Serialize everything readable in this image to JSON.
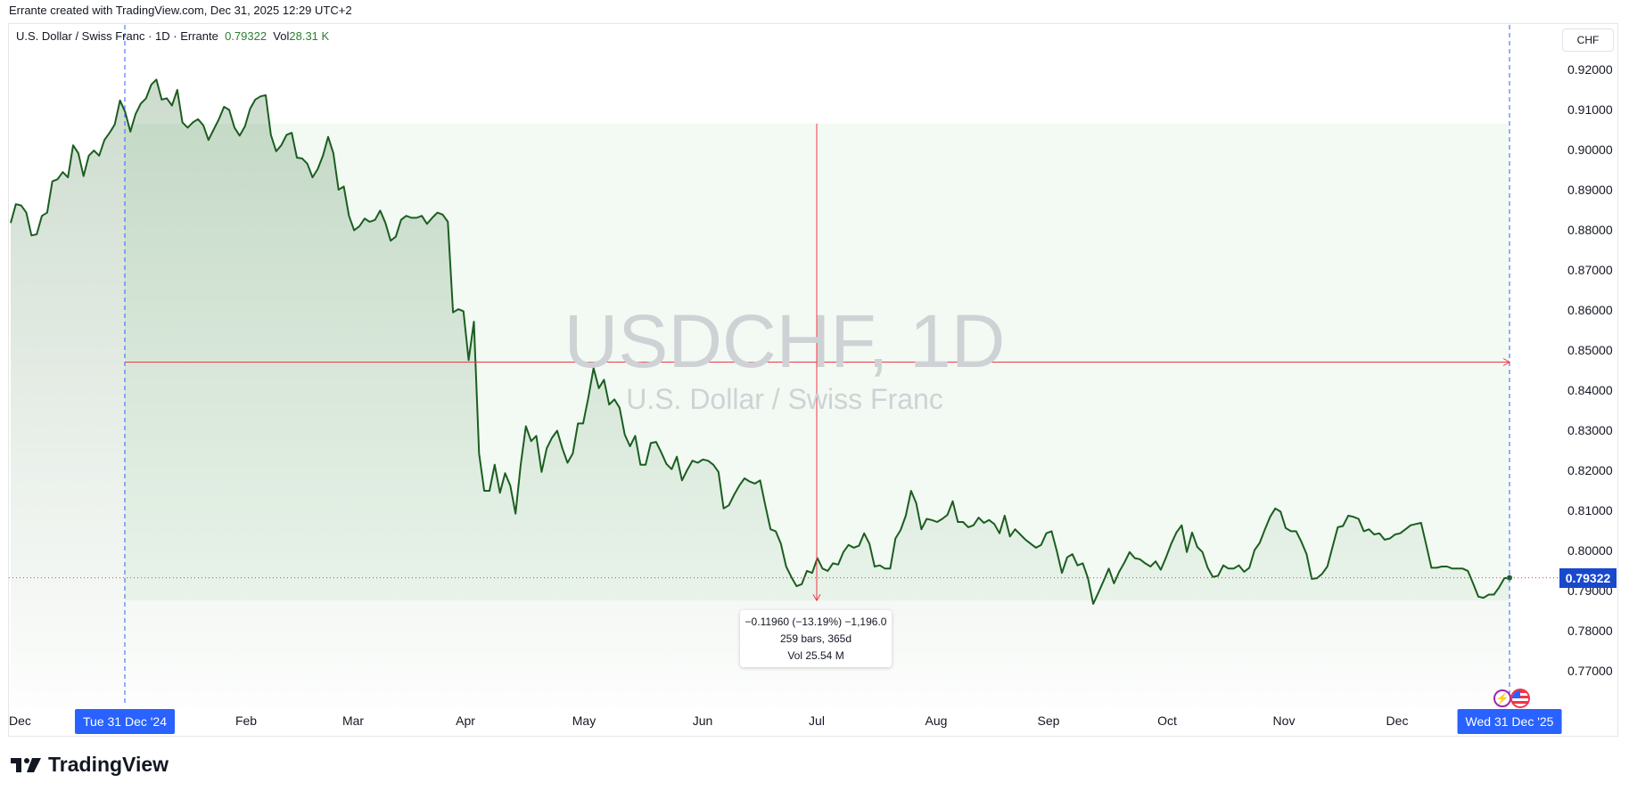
{
  "header": {
    "credit": "Errante created with TradingView.com, Dec 31, 2025 12:29 UTC+2",
    "symbol_desc": "U.S. Dollar / Swiss Franc · 1D · Errante",
    "last": "0.79322",
    "vol_label": "Vol",
    "vol_value": "28.31 K",
    "currency_button": "CHF"
  },
  "watermark": {
    "title": "USDCHF, 1D",
    "subtitle": "U.S. Dollar / Swiss Franc"
  },
  "measure_tooltip": {
    "line1": "−0.11960 (−13.19%) −1,196.0",
    "line2": "259 bars, 365d",
    "line3": "Vol 25.54 M"
  },
  "brand": {
    "name": "TradingView"
  },
  "colors": {
    "line": "#1b5e20",
    "accent": "#2962ff",
    "last_price_bg": "#1848cc",
    "measure": "#f23645"
  },
  "chart_data": {
    "type": "area",
    "symbol": "USDCHF",
    "interval": "1D",
    "ylim": [
      0.76,
      0.925
    ],
    "y_ticks": [
      "0.92000",
      "0.91000",
      "0.90000",
      "0.89000",
      "0.88000",
      "0.87000",
      "0.86000",
      "0.85000",
      "0.84000",
      "0.83000",
      "0.82000",
      "0.81000",
      "0.80000",
      "0.79000",
      "0.78000",
      "0.77000"
    ],
    "x_ticks": [
      "Dec",
      "Feb",
      "Mar",
      "Apr",
      "May",
      "Jun",
      "Jul",
      "Aug",
      "Sep",
      "Oct",
      "Nov",
      "Dec"
    ],
    "range_start_label": "Tue 31 Dec '24",
    "range_end_label": "Wed 31 Dec '25",
    "last_price": "0.79322",
    "measure": {
      "from_price": 0.9065,
      "to_price": 0.7875,
      "level": 0.847
    },
    "grid": false,
    "values": [
      0.8817,
      0.8864,
      0.8861,
      0.8843,
      0.8786,
      0.8789,
      0.8835,
      0.8843,
      0.8921,
      0.8926,
      0.8944,
      0.8931,
      0.9011,
      0.8991,
      0.8934,
      0.8985,
      0.8998,
      0.8985,
      0.9024,
      0.9042,
      0.9063,
      0.9123,
      0.9094,
      0.9045,
      0.9089,
      0.9115,
      0.9128,
      0.9162,
      0.9175,
      0.9125,
      0.9128,
      0.911,
      0.9149,
      0.9068,
      0.9055,
      0.9068,
      0.9076,
      0.9061,
      0.9024,
      0.905,
      0.9076,
      0.9107,
      0.9099,
      0.9055,
      0.9035,
      0.9058,
      0.9102,
      0.9125,
      0.9133,
      0.9136,
      0.9037,
      0.8996,
      0.9011,
      0.9037,
      0.9042,
      0.898,
      0.8978,
      0.8965,
      0.8931,
      0.8952,
      0.8985,
      0.9032,
      0.8991,
      0.89,
      0.8908,
      0.8835,
      0.8799,
      0.8809,
      0.8828,
      0.882,
      0.8825,
      0.8848,
      0.8817,
      0.8773,
      0.8783,
      0.8825,
      0.8835,
      0.883,
      0.883,
      0.8835,
      0.8815,
      0.883,
      0.8843,
      0.8838,
      0.882,
      0.8594,
      0.8602,
      0.8597,
      0.8475,
      0.8571,
      0.8242,
      0.8149,
      0.8149,
      0.8214,
      0.8144,
      0.8193,
      0.8162,
      0.8092,
      0.8214,
      0.831,
      0.8273,
      0.8286,
      0.8196,
      0.8255,
      0.8281,
      0.8299,
      0.8255,
      0.8219,
      0.8242,
      0.8317,
      0.8317,
      0.8382,
      0.8455,
      0.8405,
      0.8426,
      0.8364,
      0.8377,
      0.8356,
      0.8289,
      0.826,
      0.8286,
      0.8214,
      0.8214,
      0.8268,
      0.8271,
      0.8245,
      0.8216,
      0.8203,
      0.8234,
      0.8175,
      0.8201,
      0.8224,
      0.8219,
      0.8227,
      0.8224,
      0.8214,
      0.8196,
      0.8105,
      0.8113,
      0.8139,
      0.8162,
      0.818,
      0.8172,
      0.8167,
      0.8175,
      0.8113,
      0.8053,
      0.8048,
      0.8017,
      0.796,
      0.7934,
      0.7911,
      0.7916,
      0.7949,
      0.7944,
      0.7981,
      0.7955,
      0.7949,
      0.7968,
      0.7965,
      0.7996,
      0.8014,
      0.8007,
      0.8012,
      0.8043,
      0.8017,
      0.796,
      0.7963,
      0.7955,
      0.7955,
      0.803,
      0.8051,
      0.8087,
      0.8149,
      0.8118,
      0.8053,
      0.8079,
      0.8076,
      0.8071,
      0.8079,
      0.8089,
      0.8123,
      0.8071,
      0.8071,
      0.8058,
      0.8063,
      0.8082,
      0.8069,
      0.8076,
      0.8066,
      0.8043,
      0.8087,
      0.8035,
      0.8053,
      0.804,
      0.8027,
      0.8017,
      0.8007,
      0.8014,
      0.8043,
      0.8048,
      0.7999,
      0.7944,
      0.7983,
      0.7991,
      0.7963,
      0.7968,
      0.7931,
      0.7867,
      0.7895,
      0.7924,
      0.7955,
      0.7918,
      0.7947,
      0.797,
      0.7996,
      0.7981,
      0.7978,
      0.7968,
      0.796,
      0.7973,
      0.7952,
      0.7983,
      0.8017,
      0.8045,
      0.8063,
      0.7996,
      0.8045,
      0.8009,
      0.7996,
      0.7957,
      0.7934,
      0.7937,
      0.7963,
      0.7955,
      0.7955,
      0.7963,
      0.7947,
      0.7957,
      0.8001,
      0.8019,
      0.8053,
      0.8084,
      0.8105,
      0.8097,
      0.8056,
      0.8048,
      0.8048,
      0.8022,
      0.7991,
      0.7929,
      0.7931,
      0.7942,
      0.796,
      0.8009,
      0.8058,
      0.8061,
      0.8087,
      0.8084,
      0.8079,
      0.8048,
      0.8053,
      0.804,
      0.8043,
      0.8027,
      0.803,
      0.804,
      0.8043,
      0.8053,
      0.8063,
      0.8066,
      0.8069,
      0.8014,
      0.7957,
      0.7957,
      0.796,
      0.796,
      0.7955,
      0.7955,
      0.7955,
      0.7949,
      0.7918,
      0.7885,
      0.7882,
      0.789,
      0.789,
      0.7908,
      0.7931,
      0.7932
    ]
  }
}
